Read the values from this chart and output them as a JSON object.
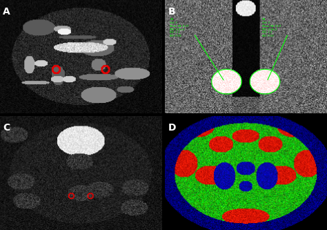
{
  "figsize": [
    4.74,
    3.33
  ],
  "dpi": 100,
  "panels": [
    "A",
    "B",
    "C",
    "D"
  ],
  "label_color": "white",
  "label_fontsize": 10,
  "label_fontweight": "bold",
  "background_color": "black",
  "annotation_color_B": "#00ff00",
  "red_marker_color": "#ff0000"
}
